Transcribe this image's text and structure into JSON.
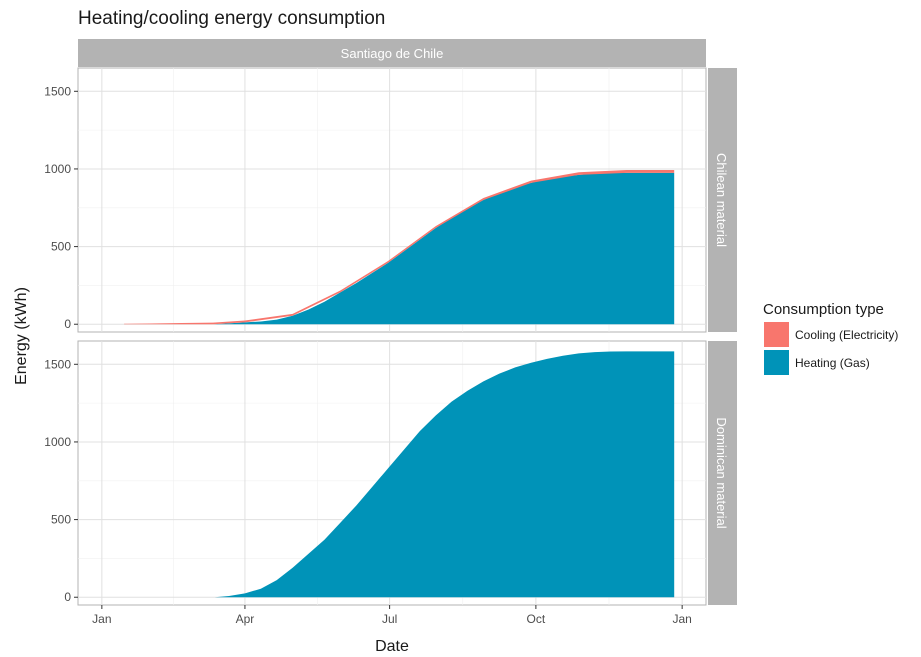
{
  "chart_data": {
    "type": "area",
    "title": "Heating/cooling energy consumption",
    "xlabel": "Date",
    "ylabel": "Energy (kWh)",
    "x_ticks": [
      "Jan",
      "Apr",
      "Jul",
      "Oct",
      "Jan"
    ],
    "x_tick_days": [
      0,
      90,
      181,
      273,
      365
    ],
    "column_strip": "Santiago de Chile",
    "legend": {
      "title": "Consumption type",
      "placement": "right",
      "entries": [
        {
          "label": "Cooling (Electricity)",
          "color": "#F8766D"
        },
        {
          "label": "Heating (Gas)",
          "color": "#0093B8"
        }
      ]
    },
    "grid": true,
    "stacked": true,
    "panels": [
      {
        "strip": "Chilean material",
        "ylim": [
          -50,
          1650
        ],
        "y_ticks": [
          0,
          500,
          1000,
          1500
        ],
        "heating": {
          "x": [
            70,
            90,
            100,
            110,
            120,
            130,
            140,
            150,
            160,
            170,
            180,
            190,
            200,
            210,
            220,
            230,
            240,
            250,
            260,
            270,
            280,
            290,
            300,
            310,
            320,
            330,
            340,
            350,
            360
          ],
          "y": [
            0,
            12,
            18,
            30,
            55,
            95,
            145,
            205,
            265,
            330,
            395,
            470,
            545,
            620,
            685,
            745,
            800,
            845,
            880,
            910,
            935,
            950,
            962,
            970,
            974,
            975,
            975,
            975,
            975
          ]
        },
        "cooling": {
          "x": [
            14,
            30,
            50,
            70,
            90,
            120,
            150,
            180,
            210,
            240,
            270,
            300,
            330,
            360
          ],
          "y": [
            3,
            5,
            8,
            10,
            12,
            12,
            12,
            12,
            12,
            13,
            15,
            17,
            18,
            18
          ]
        }
      },
      {
        "strip": "Dominican material",
        "ylim": [
          -50,
          1650
        ],
        "y_ticks": [
          0,
          500,
          1000,
          1500
        ],
        "heating": {
          "x": [
            71,
            80,
            90,
            100,
            110,
            120,
            130,
            140,
            150,
            160,
            170,
            180,
            190,
            200,
            210,
            220,
            230,
            240,
            250,
            260,
            270,
            280,
            290,
            300,
            310,
            320,
            330,
            340,
            350,
            360
          ],
          "y": [
            0,
            8,
            25,
            55,
            110,
            190,
            280,
            370,
            480,
            590,
            710,
            830,
            950,
            1070,
            1170,
            1260,
            1330,
            1390,
            1440,
            1480,
            1510,
            1535,
            1555,
            1570,
            1578,
            1582,
            1583,
            1583,
            1583,
            1583
          ]
        },
        "cooling": {
          "x": [],
          "y": []
        }
      }
    ]
  }
}
